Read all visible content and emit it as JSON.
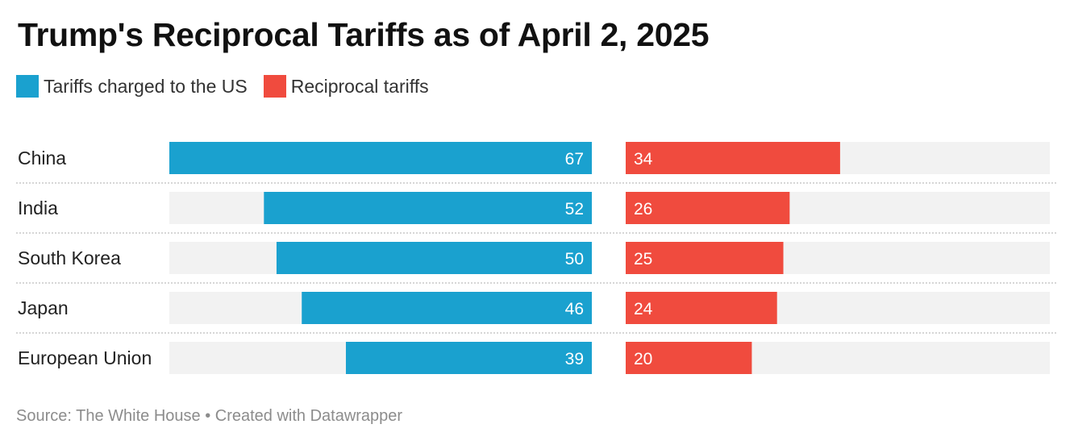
{
  "title": "Trump's Reciprocal Tariffs as of April 2, 2025",
  "source": "Source: The White House • Created with Datawrapper",
  "colors": {
    "tariffs_charged": "#1aa1cf",
    "reciprocal": "#f04b3e",
    "track": "#f2f2f2",
    "divider": "#c8c8c8"
  },
  "chart_data": {
    "type": "bar",
    "categories": [
      "China",
      "India",
      "South Korea",
      "Japan",
      "European Union"
    ],
    "series": [
      {
        "name": "Tariffs charged to the US",
        "values": [
          67,
          52,
          50,
          46,
          39
        ]
      },
      {
        "name": "Reciprocal tariffs",
        "values": [
          34,
          26,
          25,
          24,
          20
        ]
      }
    ],
    "xlim": [
      0,
      67
    ],
    "legend_position": "top-left",
    "grid": false
  }
}
